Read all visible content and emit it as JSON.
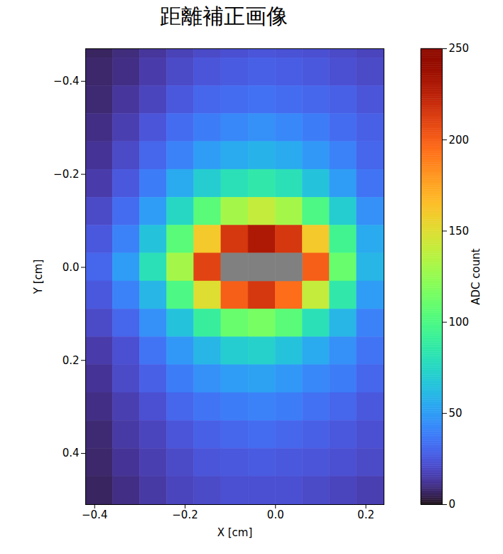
{
  "chart_data": {
    "type": "heatmap",
    "title": "距離補正画像",
    "x_label": "X [cm]",
    "y_label": "Y [cm]",
    "xlim": [
      -0.42,
      0.24
    ],
    "ylim": [
      -0.47,
      0.51
    ],
    "xticks": [
      {
        "value": -0.4,
        "label": "−0.4"
      },
      {
        "value": -0.2,
        "label": "−0.2"
      },
      {
        "value": 0,
        "label": "0.0"
      },
      0.2
    ],
    "yticks": [
      {
        "value": -0.4,
        "label": "−0.4"
      },
      {
        "value": -0.2,
        "label": "−0.2"
      },
      {
        "value": 0,
        "label": "0.0"
      },
      0.2,
      0.4
    ],
    "x_edges": [
      -0.42,
      -0.36,
      -0.3,
      -0.24,
      -0.18,
      -0.12,
      -0.06,
      0,
      0.06,
      0.12,
      0.18,
      0.24
    ],
    "y_edges": [
      -0.47,
      -0.45,
      -0.39,
      -0.33,
      -0.27,
      -0.21,
      -0.15,
      -0.09,
      -0.03,
      0.03,
      0.09,
      0.15,
      0.21,
      0.27,
      0.33,
      0.39,
      0.45,
      0.51
    ],
    "cells": [
      [
        6,
        9,
        13,
        17,
        20,
        22,
        24,
        23,
        22,
        20,
        18
      ],
      [
        7,
        10,
        15,
        20,
        24,
        26,
        28,
        27,
        25,
        22,
        20
      ],
      [
        8,
        13,
        18,
        25,
        30,
        32,
        34,
        32,
        30,
        28,
        24
      ],
      [
        10,
        16,
        24,
        32,
        38,
        42,
        45,
        42,
        38,
        32,
        28
      ],
      [
        12,
        20,
        30,
        40,
        50,
        55,
        58,
        55,
        48,
        40,
        30
      ],
      [
        15,
        25,
        38,
        55,
        70,
        80,
        85,
        80,
        65,
        50,
        35
      ],
      [
        20,
        32,
        50,
        75,
        105,
        130,
        140,
        130,
        100,
        70,
        45
      ],
      [
        25,
        40,
        65,
        105,
        160,
        215,
        230,
        215,
        160,
        95,
        55
      ],
      [
        30,
        50,
        80,
        130,
        210,
        null,
        null,
        null,
        200,
        110,
        60
      ],
      [
        25,
        40,
        60,
        100,
        150,
        200,
        215,
        195,
        140,
        85,
        50
      ],
      [
        20,
        30,
        45,
        65,
        90,
        110,
        115,
        105,
        80,
        60,
        40
      ],
      [
        15,
        22,
        35,
        48,
        60,
        70,
        72,
        65,
        55,
        45,
        35
      ],
      [
        12,
        20,
        28,
        38,
        45,
        50,
        52,
        48,
        42,
        38,
        30
      ],
      [
        10,
        16,
        22,
        30,
        35,
        38,
        40,
        38,
        34,
        30,
        25
      ],
      [
        8,
        14,
        18,
        24,
        28,
        30,
        32,
        30,
        28,
        25,
        22
      ],
      [
        7,
        12,
        16,
        20,
        24,
        25,
        26,
        25,
        24,
        22,
        20
      ],
      [
        6,
        10,
        14,
        18,
        20,
        22,
        22,
        22,
        20,
        18,
        16
      ]
    ],
    "colorbar": {
      "label": "ADC count",
      "range": [
        0,
        250
      ],
      "ticks": [
        0,
        50,
        100,
        150,
        200,
        250
      ],
      "color": "turbo"
    }
  }
}
